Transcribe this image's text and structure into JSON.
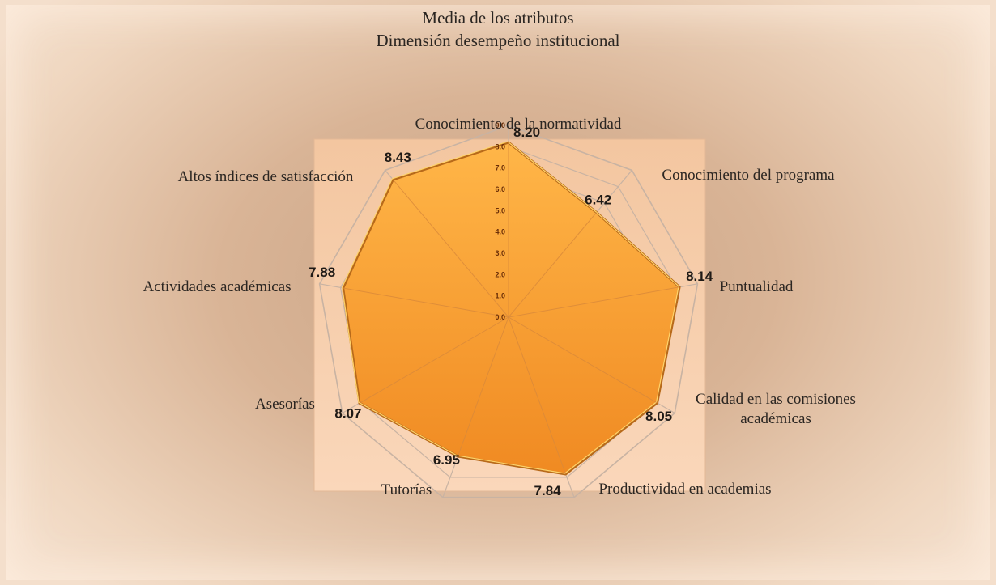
{
  "chart_data": {
    "type": "radar",
    "title_line1": "Media de los atributos",
    "title_line2": "Dimensión desempeño institucional",
    "categories": [
      [
        "Conocimiento de la normatividad"
      ],
      [
        "Conocimiento del programa"
      ],
      [
        "Puntualidad"
      ],
      [
        "Calidad en las comisiones",
        "académicas"
      ],
      [
        "Productividad en academias"
      ],
      [
        "Tutorías"
      ],
      [
        "Asesorías"
      ],
      [
        "Actividades académicas"
      ],
      [
        "Altos índices de satisfacción"
      ]
    ],
    "values": [
      8.2,
      6.42,
      8.14,
      8.05,
      7.84,
      6.95,
      8.07,
      7.88,
      8.43
    ],
    "value_labels": [
      "8.20",
      "6.42",
      "8.14",
      "8.05",
      "7.84",
      "6.95",
      "8.07",
      "7.88",
      "8.43"
    ],
    "rmin": 0,
    "rmax": 9,
    "ticks": [
      "0.0",
      "1.0",
      "2.0",
      "3.0",
      "4.0",
      "5.0",
      "6.0",
      "7.0",
      "8.0",
      "9.0"
    ],
    "fill_color": "#f59a2c",
    "stroke_color": "#b86a1a",
    "gridline_color": "#c8b3a3"
  }
}
